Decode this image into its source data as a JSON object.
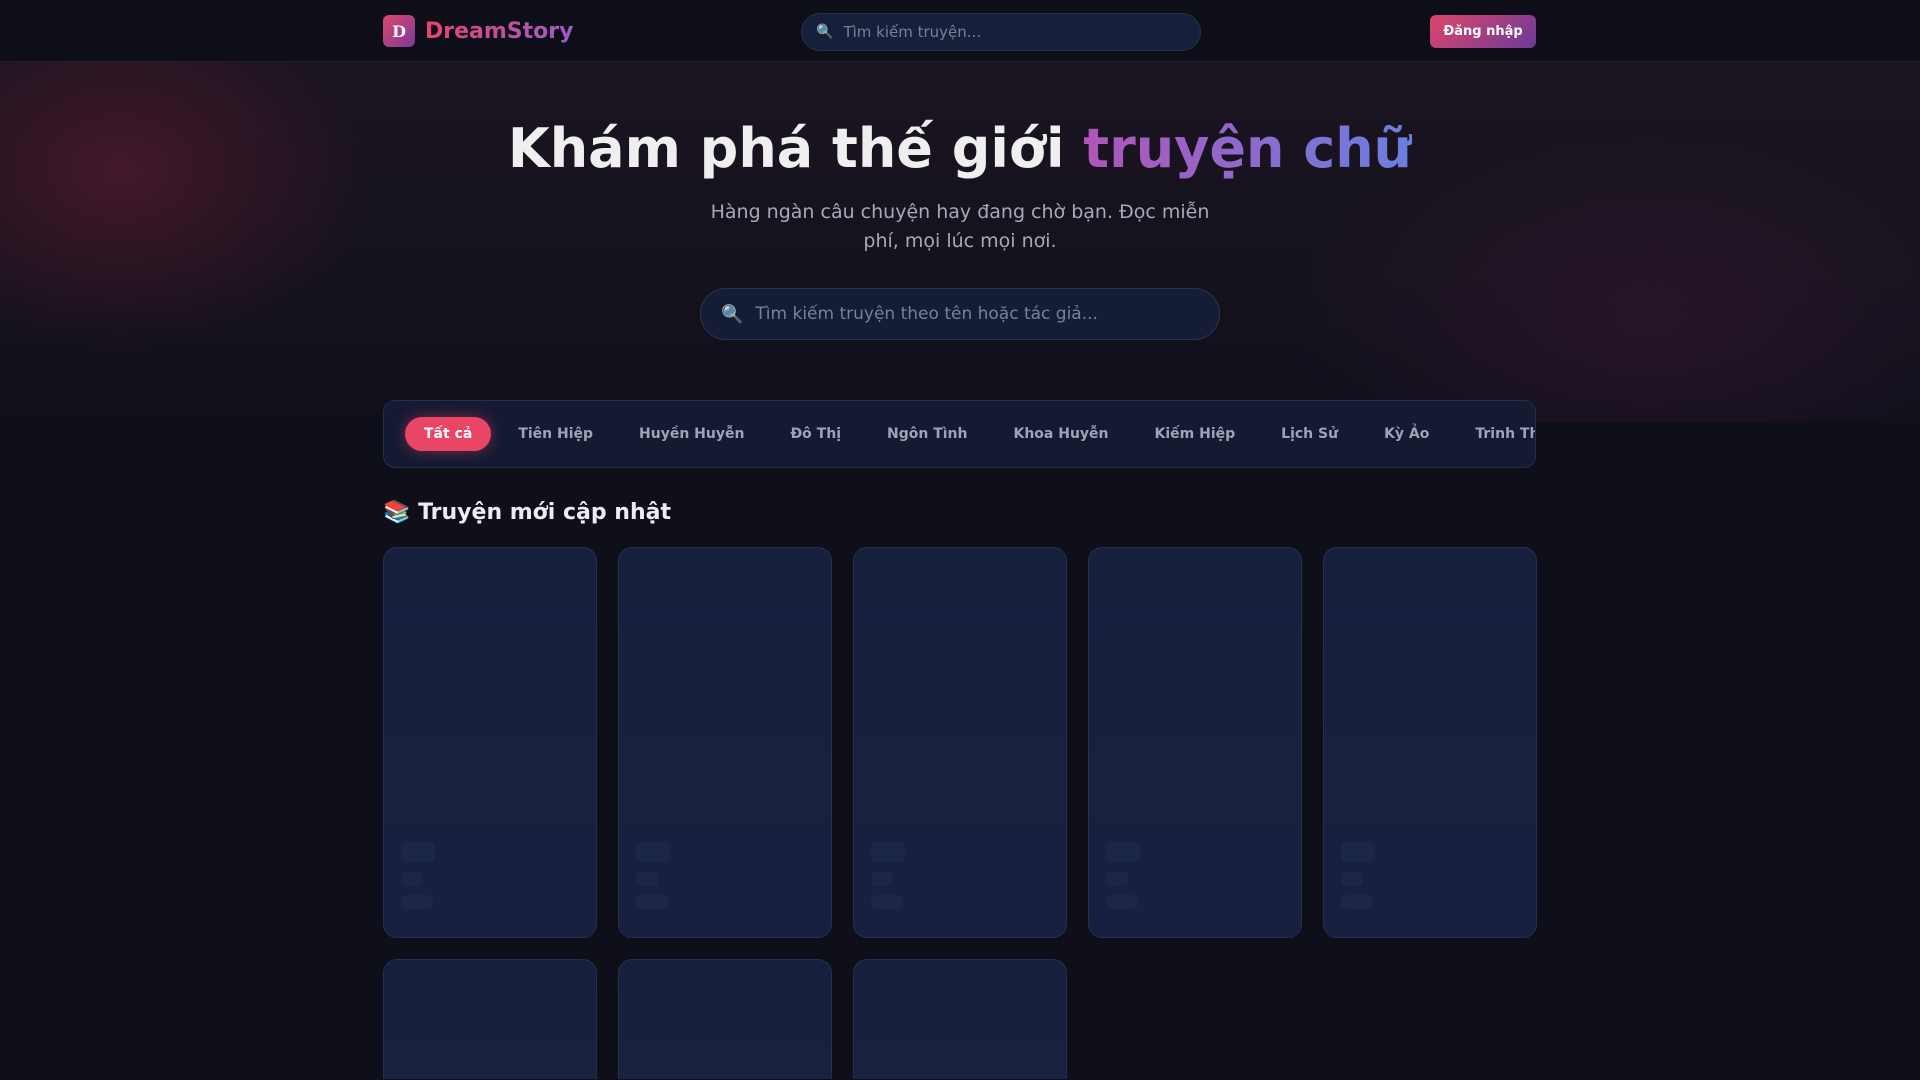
{
  "header": {
    "logo_letter": "D",
    "brand": "DreamStory",
    "search_placeholder": "Tìm kiếm truyện...",
    "login_label": "Đăng nhập"
  },
  "hero": {
    "title_plain": "Khám phá thế giới ",
    "title_highlight": "truyện chữ",
    "subtitle": "Hàng ngàn câu chuyện hay đang chờ bạn. Đọc miễn phí, mọi lúc mọi nơi.",
    "search_placeholder": "Tìm kiếm truyện theo tên hoặc tác giả..."
  },
  "categories": [
    "Tất cả",
    "Tiên Hiệp",
    "Huyền Huyễn",
    "Đô Thị",
    "Ngôn Tình",
    "Khoa Huyễn",
    "Kiếm Hiệp",
    "Lịch Sử",
    "Kỳ Ảo",
    "Trinh Thám"
  ],
  "active_category": "Tất cả",
  "section": {
    "icon": "📚",
    "title": "Truyện mới cập nhật"
  },
  "cards_loading": 8,
  "colors": {
    "accent": "#ea4565",
    "brand_gradient_end": "#7a3a9a",
    "background": "#0f0f1a",
    "card": "#17213f"
  }
}
